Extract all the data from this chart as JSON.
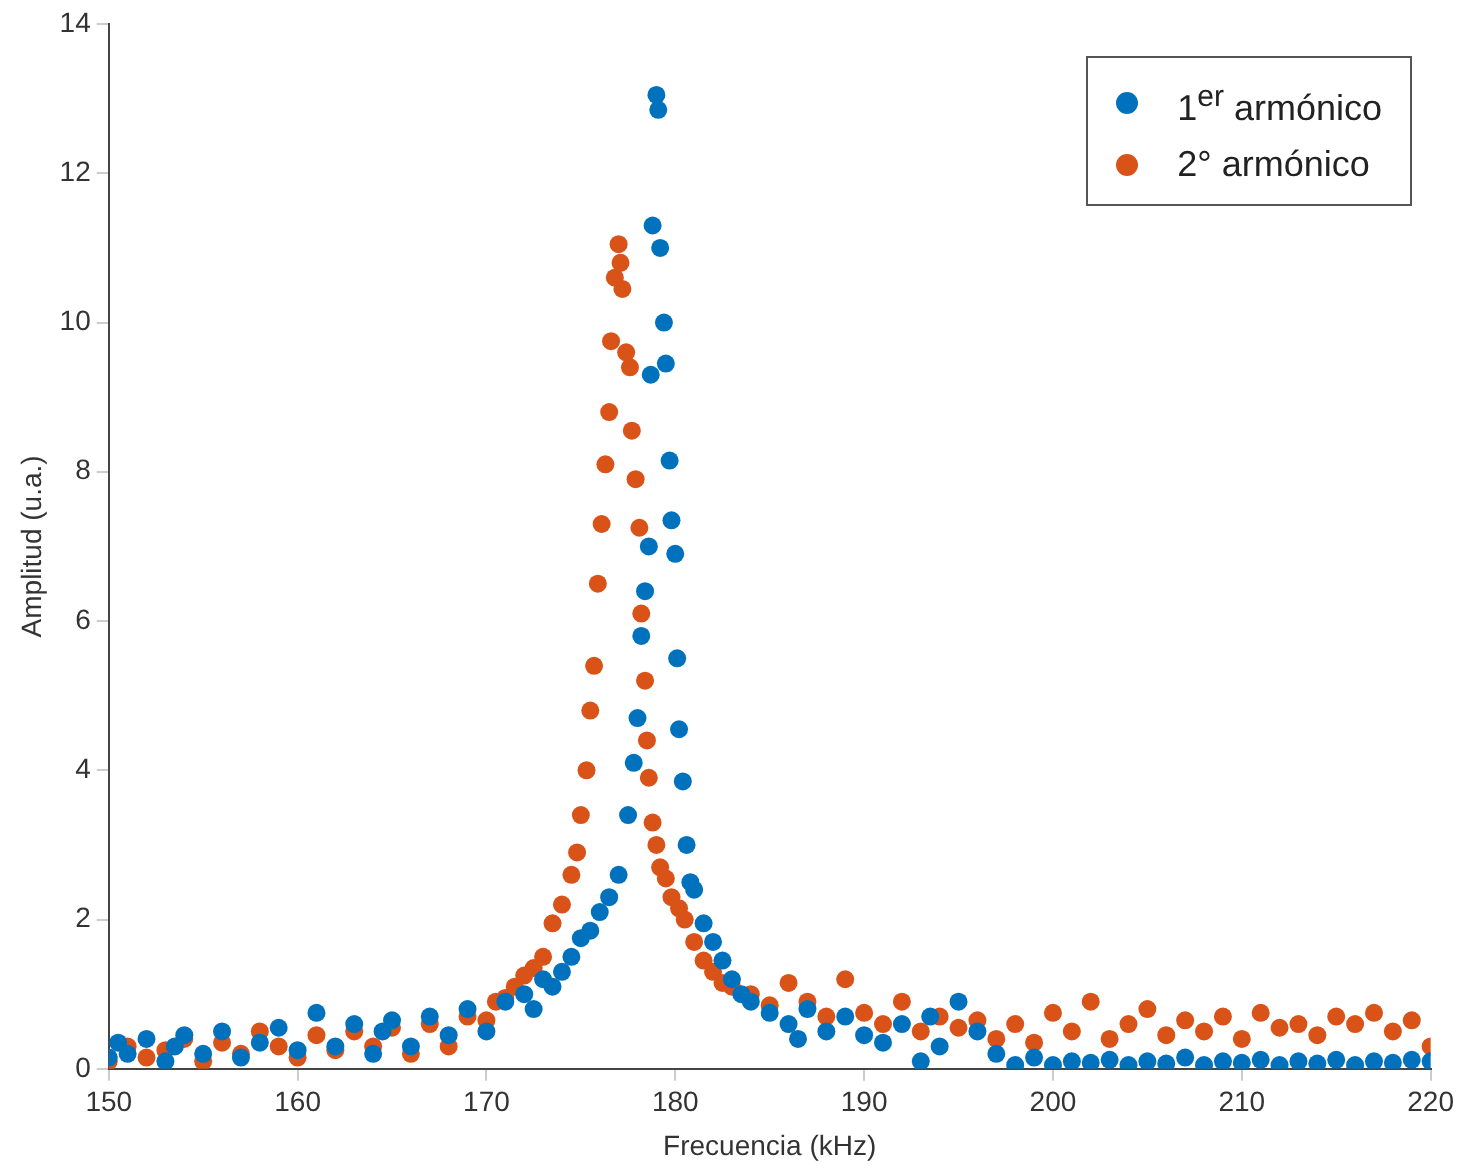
{
  "chart_data": {
    "type": "scatter",
    "xlabel": "Frecuencia (kHz)",
    "ylabel": "Amplitud (u.a.)",
    "xlim": [
      150,
      220
    ],
    "xticks": [
      150,
      160,
      170,
      180,
      190,
      200,
      210,
      220
    ],
    "ylim": [
      0,
      14
    ],
    "yticks": [
      0,
      2,
      4,
      6,
      8,
      10,
      12,
      14
    ],
    "legend": "top right",
    "marker": "circle",
    "series": [
      {
        "name": "1$^{er}$ armónico",
        "color": "#0072bd",
        "x": [
          150,
          150.5,
          151,
          152,
          153,
          153.5,
          154,
          155,
          156,
          157,
          158,
          159,
          160,
          161,
          162,
          163,
          164,
          164.5,
          165,
          166,
          167,
          168,
          169,
          170,
          171,
          172,
          172.5,
          173,
          173.5,
          174,
          174.5,
          175,
          175.5,
          176,
          176.5,
          177,
          177.5,
          177.8,
          178,
          178.2,
          178.4,
          178.6,
          178.7,
          178.8,
          179,
          179.1,
          179.2,
          179.4,
          179.5,
          179.7,
          179.8,
          180,
          180.1,
          180.2,
          180.4,
          180.6,
          180.8,
          181,
          181.5,
          182,
          182.5,
          183,
          183.5,
          184,
          185,
          186,
          186.5,
          187,
          188,
          189,
          190,
          191,
          192,
          193,
          193.5,
          194,
          195,
          196,
          197,
          198,
          199,
          200,
          201,
          202,
          203,
          204,
          205,
          206,
          207,
          208,
          209,
          210,
          211,
          212,
          213,
          214,
          215,
          216,
          217,
          218,
          219,
          220
        ],
        "values": [
          0.15,
          0.35,
          0.2,
          0.4,
          0.1,
          0.3,
          0.45,
          0.2,
          0.5,
          0.15,
          0.35,
          0.55,
          0.25,
          0.75,
          0.3,
          0.6,
          0.2,
          0.5,
          0.65,
          0.3,
          0.7,
          0.45,
          0.8,
          0.5,
          0.9,
          1.0,
          0.8,
          1.2,
          1.1,
          1.3,
          1.5,
          1.75,
          1.85,
          2.1,
          2.3,
          2.6,
          3.4,
          4.1,
          4.7,
          5.8,
          6.4,
          7.0,
          9.3,
          11.3,
          13.05,
          12.85,
          11.0,
          10.0,
          9.45,
          8.15,
          7.35,
          6.9,
          5.5,
          4.55,
          3.85,
          3.0,
          2.5,
          2.4,
          1.95,
          1.7,
          1.45,
          1.2,
          1.0,
          0.9,
          0.75,
          0.6,
          0.4,
          0.8,
          0.5,
          0.7,
          0.45,
          0.35,
          0.6,
          0.1,
          0.7,
          0.3,
          0.9,
          0.5,
          0.2,
          0.05,
          0.15,
          0.05,
          0.1,
          0.08,
          0.12,
          0.05,
          0.1,
          0.07,
          0.15,
          0.05,
          0.1,
          0.08,
          0.12,
          0.05,
          0.1,
          0.07,
          0.12,
          0.05,
          0.1,
          0.08,
          0.12,
          0.1
        ]
      },
      {
        "name": "2° armónico",
        "color": "#d95319",
        "x": [
          150,
          151,
          152,
          153,
          154,
          155,
          156,
          157,
          158,
          159,
          160,
          161,
          162,
          163,
          164,
          165,
          166,
          167,
          168,
          169,
          170,
          170.5,
          171,
          171.5,
          172,
          172.5,
          173,
          173.5,
          174,
          174.5,
          174.8,
          175,
          175.3,
          175.5,
          175.7,
          175.9,
          176.1,
          176.3,
          176.5,
          176.6,
          176.8,
          177,
          177.1,
          177.2,
          177.4,
          177.6,
          177.7,
          177.9,
          178.1,
          178.2,
          178.4,
          178.5,
          178.6,
          178.8,
          179,
          179.2,
          179.5,
          179.8,
          180.2,
          180.5,
          181,
          181.5,
          182,
          182.5,
          183,
          184,
          185,
          186,
          187,
          188,
          189,
          190,
          191,
          192,
          193,
          194,
          195,
          196,
          197,
          198,
          199,
          200,
          201,
          202,
          203,
          204,
          205,
          206,
          207,
          208,
          209,
          210,
          211,
          212,
          213,
          214,
          215,
          216,
          217,
          218,
          219,
          220
        ],
        "values": [
          0.1,
          0.3,
          0.15,
          0.25,
          0.4,
          0.1,
          0.35,
          0.2,
          0.5,
          0.3,
          0.15,
          0.45,
          0.25,
          0.5,
          0.3,
          0.55,
          0.2,
          0.6,
          0.3,
          0.7,
          0.65,
          0.9,
          0.95,
          1.1,
          1.25,
          1.35,
          1.5,
          1.95,
          2.2,
          2.6,
          2.9,
          3.4,
          4.0,
          4.8,
          5.4,
          6.5,
          7.3,
          8.1,
          8.8,
          9.75,
          10.6,
          11.05,
          10.8,
          10.45,
          9.6,
          9.4,
          8.55,
          7.9,
          7.25,
          6.1,
          5.2,
          4.4,
          3.9,
          3.3,
          3.0,
          2.7,
          2.55,
          2.3,
          2.15,
          2.0,
          1.7,
          1.45,
          1.3,
          1.15,
          1.1,
          1.0,
          0.85,
          1.15,
          0.9,
          0.7,
          1.2,
          0.75,
          0.6,
          0.9,
          0.5,
          0.7,
          0.55,
          0.65,
          0.4,
          0.6,
          0.35,
          0.75,
          0.5,
          0.9,
          0.4,
          0.6,
          0.8,
          0.45,
          0.65,
          0.5,
          0.7,
          0.4,
          0.75,
          0.55,
          0.6,
          0.45,
          0.7,
          0.6,
          0.75,
          0.5,
          0.65,
          0.3
        ]
      }
    ]
  }
}
